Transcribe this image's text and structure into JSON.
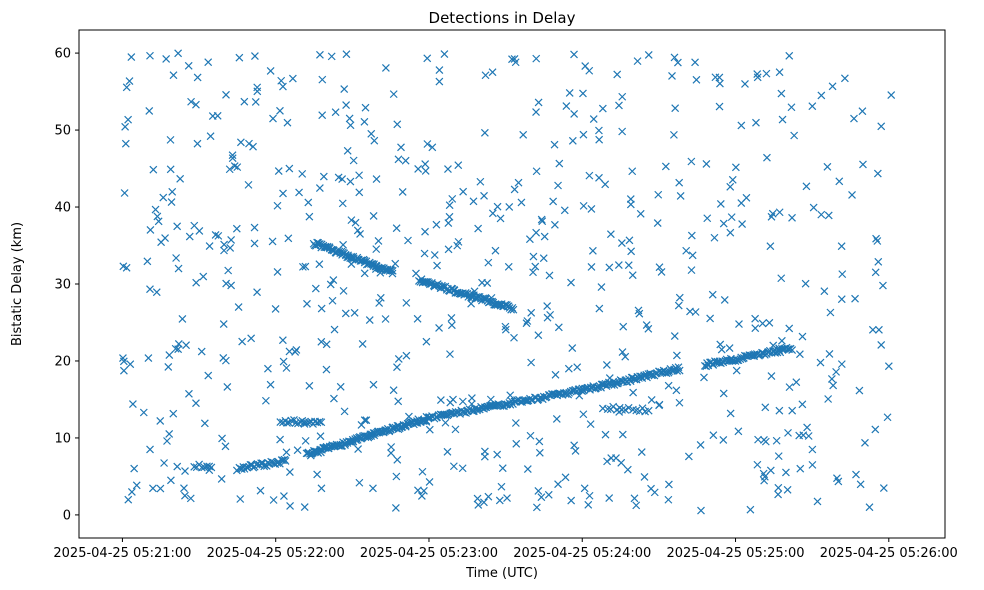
{
  "chart_data": {
    "type": "scatter",
    "title": "Detections in Delay",
    "xlabel": "Time (UTC)",
    "ylabel": "Bistatic Delay (km)",
    "marker": "x",
    "color": "#1f77b4",
    "grid": false,
    "x_units": "seconds after 2025-04-25 05:21:00",
    "xlim": [
      -17,
      322
    ],
    "ylim": [
      -3,
      63
    ],
    "x_ticks": [
      {
        "value": 0,
        "label": "2025-04-25 05:21:00"
      },
      {
        "value": 60,
        "label": "2025-04-25 05:22:00"
      },
      {
        "value": 120,
        "label": "2025-04-25 05:23:00"
      },
      {
        "value": 180,
        "label": "2025-04-25 05:24:00"
      },
      {
        "value": 240,
        "label": "2025-04-25 05:25:00"
      },
      {
        "value": 300,
        "label": "2025-04-25 05:26:00"
      }
    ],
    "y_ticks": [
      {
        "value": 0,
        "label": "0"
      },
      {
        "value": 10,
        "label": "10"
      },
      {
        "value": 20,
        "label": "20"
      },
      {
        "value": 30,
        "label": "30"
      },
      {
        "value": 40,
        "label": "40"
      },
      {
        "value": 50,
        "label": "50"
      },
      {
        "value": 60,
        "label": "60"
      }
    ],
    "tracks": [
      {
        "name": "rising-track-a",
        "x_start": 45,
        "x_end": 64,
        "y_start": 6.0,
        "y_end": 7.0,
        "count": 34
      },
      {
        "name": "rising-track-b",
        "x_start": 72,
        "x_end": 120,
        "y_start": 7.8,
        "y_end": 12.6,
        "count": 120
      },
      {
        "name": "rising-track-c",
        "x_start": 120,
        "x_end": 180,
        "y_start": 12.6,
        "y_end": 16.2,
        "count": 110
      },
      {
        "name": "rising-track-d",
        "x_start": 180,
        "x_end": 218,
        "y_start": 16.2,
        "y_end": 19.0,
        "count": 80
      },
      {
        "name": "rising-track-e",
        "x_start": 228,
        "x_end": 262,
        "y_start": 19.5,
        "y_end": 21.6,
        "count": 70
      },
      {
        "name": "falling-track-a",
        "x_start": 75,
        "x_end": 106,
        "y_start": 35.3,
        "y_end": 31.5,
        "count": 80
      },
      {
        "name": "falling-track-b",
        "x_start": 116,
        "x_end": 153,
        "y_start": 30.5,
        "y_end": 26.8,
        "count": 85
      },
      {
        "name": "flat-track-a",
        "x_start": 62,
        "x_end": 78,
        "y_start": 12.2,
        "y_end": 12.0,
        "count": 20
      },
      {
        "name": "flat-track-b",
        "x_start": 28,
        "x_end": 35,
        "y_start": 6.4,
        "y_end": 6.2,
        "count": 8
      },
      {
        "name": "flat-track-c",
        "x_start": 190,
        "x_end": 198,
        "y_start": 13.9,
        "y_end": 13.7,
        "count": 8
      },
      {
        "name": "flat-track-d",
        "x_start": 200,
        "x_end": 206,
        "y_start": 13.7,
        "y_end": 13.6,
        "count": 6
      }
    ],
    "noise": {
      "count": 650,
      "x_range": [
        0,
        302
      ],
      "y_range": [
        0.5,
        60
      ],
      "seed": 7
    }
  }
}
